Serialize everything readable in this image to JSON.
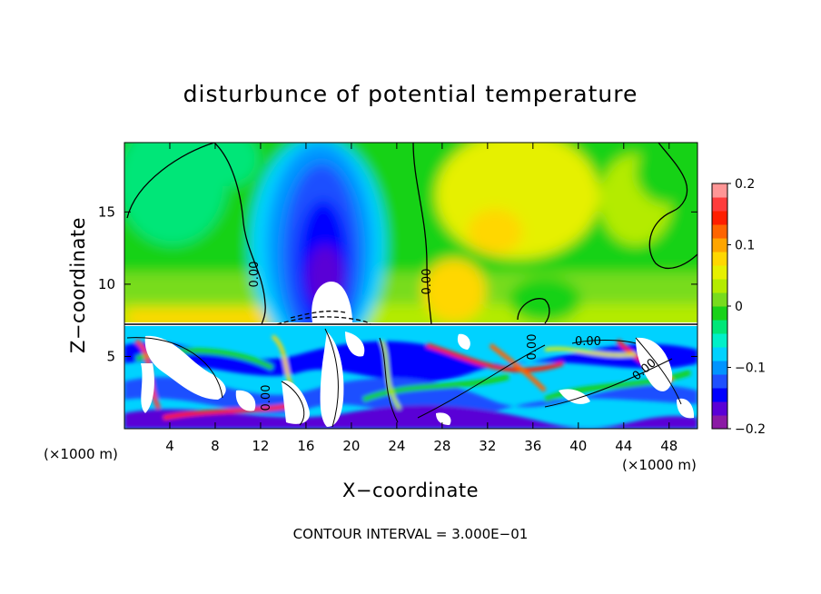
{
  "chart_data": {
    "type": "heatmap",
    "title": "disturbunce of potential temperature",
    "xlabel": "X−coordinate",
    "ylabel": "Z−coordinate",
    "x_unit_left": "(×1000 m)",
    "x_unit_right": "(×1000 m)",
    "footer": "CONTOUR INTERVAL = 3.000E−01",
    "xlim": [
      0,
      50.5
    ],
    "ylim": [
      0,
      19.8
    ],
    "x_ticks": [
      4,
      8,
      12,
      16,
      20,
      24,
      28,
      32,
      36,
      40,
      44,
      48
    ],
    "y_ticks": [
      5,
      10,
      15
    ],
    "colorbar": {
      "range": [
        -0.2,
        0.2
      ],
      "tick_values": [
        0.2,
        0.1,
        0,
        -0.1,
        -0.2
      ],
      "tick_labels": [
        "0.2",
        "0.1",
        "0",
        "−0.1",
        "−0.2"
      ],
      "colors": [
        "#8b1aa5",
        "#5a00d6",
        "#0000ff",
        "#1e50ff",
        "#0094ff",
        "#00d2ff",
        "#00f0c8",
        "#00e678",
        "#19d219",
        "#78dc1e",
        "#b4eb00",
        "#e6f000",
        "#ffd700",
        "#ffa500",
        "#ff6400",
        "#ff1e00",
        "#ff3c3c",
        "#ff9696"
      ]
    },
    "contour_labels": [
      "0.00",
      "0.00",
      "0.00",
      "0.00",
      "0.00",
      "0.00"
    ],
    "grid": false
  }
}
